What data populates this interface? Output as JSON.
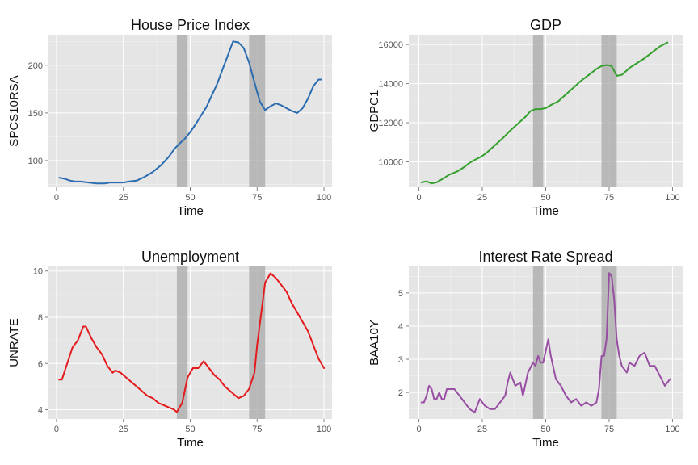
{
  "chart_data": [
    {
      "type": "line",
      "title": "House Price Index",
      "xlabel": "Time",
      "ylabel": "SPCS10RSA",
      "xlim": [
        -3,
        103
      ],
      "ylim": [
        72,
        232
      ],
      "xticks": [
        0,
        25,
        50,
        75,
        100
      ],
      "yticks": [
        100,
        150,
        200
      ],
      "grid": true,
      "recessions": [
        [
          45,
          49
        ],
        [
          72,
          78
        ]
      ],
      "color": "#2b6cb0",
      "x": [
        1,
        3,
        5,
        7,
        9,
        12,
        15,
        18,
        20,
        22,
        25,
        27,
        30,
        33,
        36,
        39,
        42,
        44,
        46,
        48,
        50,
        52,
        54,
        56,
        58,
        60,
        62,
        64,
        66,
        68,
        70,
        72,
        74,
        76,
        78,
        80,
        82,
        84,
        86,
        88,
        90,
        92,
        94,
        96,
        98,
        99
      ],
      "y": [
        82,
        81,
        79,
        78,
        78,
        77,
        76,
        76,
        77,
        77,
        77,
        78,
        79,
        83,
        88,
        95,
        104,
        112,
        118,
        123,
        130,
        138,
        147,
        156,
        168,
        180,
        195,
        210,
        225,
        224,
        218,
        203,
        182,
        162,
        153,
        157,
        160,
        158,
        155,
        152,
        150,
        155,
        165,
        178,
        185,
        185
      ]
    },
    {
      "type": "line",
      "title": "GDP",
      "xlabel": "Time",
      "ylabel": "GDPC1",
      "xlim": [
        -4,
        104
      ],
      "ylim": [
        8700,
        16500
      ],
      "xticks": [
        0,
        25,
        50,
        75,
        100
      ],
      "yticks": [
        10000,
        12000,
        14000,
        16000
      ],
      "grid": true,
      "recessions": [
        [
          45,
          49
        ],
        [
          72,
          78
        ]
      ],
      "color": "#33a02c",
      "x": [
        1,
        3,
        5,
        7,
        9,
        12,
        15,
        18,
        20,
        22,
        25,
        27,
        30,
        33,
        36,
        39,
        42,
        44,
        46,
        48,
        50,
        52,
        55,
        58,
        61,
        64,
        67,
        70,
        72,
        74,
        76,
        78,
        80,
        83,
        86,
        89,
        92,
        95,
        98
      ],
      "y": [
        8950,
        9000,
        8900,
        8950,
        9100,
        9350,
        9500,
        9750,
        9950,
        10100,
        10300,
        10500,
        10850,
        11200,
        11600,
        11950,
        12300,
        12600,
        12700,
        12700,
        12750,
        12900,
        13100,
        13450,
        13800,
        14150,
        14450,
        14750,
        14900,
        14950,
        14900,
        14400,
        14450,
        14800,
        15050,
        15300,
        15600,
        15900,
        16100
      ]
    },
    {
      "type": "line",
      "title": "Unemployment",
      "xlabel": "Time",
      "ylabel": "UNRATE",
      "xlim": [
        -3,
        103
      ],
      "ylim": [
        3.6,
        10.2
      ],
      "xticks": [
        0,
        25,
        50,
        75,
        100
      ],
      "yticks": [
        4,
        6,
        8,
        10
      ],
      "grid": true,
      "recessions": [
        [
          45,
          49
        ],
        [
          72,
          78
        ]
      ],
      "color": "#e41a1c",
      "x": [
        1,
        2,
        4,
        6,
        8,
        10,
        11,
        13,
        15,
        17,
        19,
        21,
        22,
        24,
        26,
        28,
        30,
        32,
        34,
        36,
        38,
        40,
        42,
        44,
        45,
        47,
        49,
        51,
        53,
        55,
        57,
        59,
        61,
        63,
        65,
        67,
        68,
        70,
        72,
        74,
        75,
        77,
        78,
        80,
        82,
        84,
        86,
        88,
        90,
        92,
        94,
        96,
        98,
        99,
        100
      ],
      "y": [
        5.3,
        5.3,
        6.0,
        6.7,
        7.0,
        7.6,
        7.6,
        7.1,
        6.7,
        6.4,
        5.9,
        5.6,
        5.7,
        5.6,
        5.4,
        5.2,
        5.0,
        4.8,
        4.6,
        4.5,
        4.3,
        4.2,
        4.1,
        4.0,
        3.9,
        4.3,
        5.4,
        5.8,
        5.8,
        6.1,
        5.8,
        5.5,
        5.3,
        5.0,
        4.8,
        4.6,
        4.5,
        4.6,
        4.9,
        5.6,
        6.8,
        8.6,
        9.5,
        9.9,
        9.7,
        9.4,
        9.1,
        8.6,
        8.2,
        7.8,
        7.4,
        6.8,
        6.2,
        6.0,
        5.8
      ]
    },
    {
      "type": "line",
      "title": "Interest Rate Spread",
      "xlabel": "Time",
      "ylabel": "BAA10Y",
      "xlim": [
        -4,
        104
      ],
      "ylim": [
        1.2,
        5.8
      ],
      "xticks": [
        0,
        25,
        50,
        75,
        100
      ],
      "yticks": [
        2,
        3,
        4,
        5
      ],
      "grid": true,
      "recessions": [
        [
          45,
          49
        ],
        [
          72,
          78
        ]
      ],
      "color": "#984ea3",
      "x": [
        1,
        2,
        3,
        4,
        5,
        6,
        7,
        8,
        9,
        10,
        11,
        12,
        14,
        16,
        18,
        20,
        22,
        24,
        26,
        28,
        30,
        32,
        34,
        35,
        36,
        38,
        40,
        41,
        43,
        45,
        46,
        47,
        48,
        49,
        51,
        52,
        54,
        56,
        58,
        60,
        62,
        64,
        66,
        68,
        70,
        71,
        72,
        73,
        74,
        75,
        76,
        77,
        78,
        79,
        80,
        82,
        83,
        85,
        87,
        89,
        91,
        93,
        95,
        97,
        99
      ],
      "y": [
        1.7,
        1.7,
        1.9,
        2.2,
        2.1,
        1.8,
        1.8,
        2.0,
        1.8,
        1.8,
        2.1,
        2.1,
        2.1,
        1.9,
        1.7,
        1.5,
        1.4,
        1.8,
        1.6,
        1.5,
        1.5,
        1.7,
        1.9,
        2.3,
        2.6,
        2.2,
        2.3,
        1.9,
        2.6,
        2.9,
        2.8,
        3.1,
        2.9,
        2.9,
        3.6,
        3.1,
        2.4,
        2.2,
        1.9,
        1.7,
        1.8,
        1.6,
        1.7,
        1.6,
        1.7,
        2.1,
        3.1,
        3.1,
        3.6,
        5.6,
        5.5,
        4.8,
        3.6,
        3.1,
        2.8,
        2.6,
        2.9,
        2.8,
        3.1,
        3.2,
        2.8,
        2.8,
        2.5,
        2.2,
        2.4
      ]
    }
  ]
}
